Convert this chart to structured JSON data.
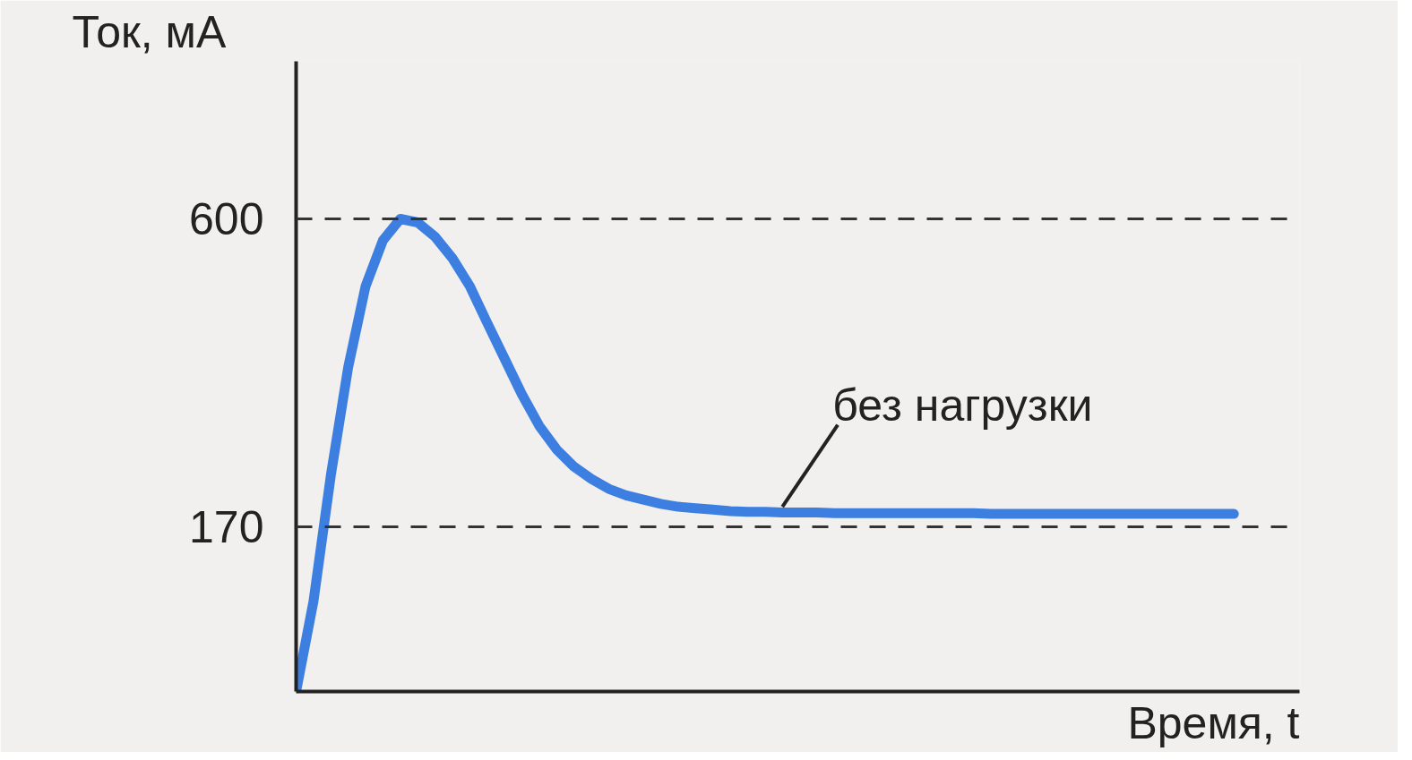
{
  "chart_data": {
    "type": "line",
    "xlabel": "Время, t",
    "ylabel": "Ток, мА",
    "categories": [
      null,
      null,
      null,
      null,
      null,
      null,
      null,
      null,
      null,
      null,
      null,
      null,
      null,
      null,
      null,
      null,
      null,
      null,
      null,
      null,
      null,
      null,
      null,
      null,
      null,
      null,
      null,
      null,
      null,
      null,
      null,
      null,
      null,
      null,
      null,
      null,
      null,
      null,
      null,
      null,
      null,
      null,
      null,
      null,
      null,
      null,
      null,
      null,
      null,
      null,
      null,
      null,
      null,
      null,
      null
    ],
    "series": [
      {
        "color": "#3d7fe0",
        "values": [
          -60,
          66,
          242,
          393,
          506,
          570,
          600,
          595,
          575,
          545,
          506,
          455,
          405,
          355,
          311,
          278,
          254,
          237,
          223,
          214,
          208,
          202,
          198,
          196,
          194,
          192,
          191,
          191,
          190,
          190,
          190,
          189,
          189,
          189,
          189,
          189,
          189,
          189,
          189,
          189,
          188,
          188,
          188,
          188,
          188,
          188,
          188,
          188,
          188,
          188,
          188,
          188,
          188,
          188,
          188
        ]
      }
    ],
    "ylim": [
      -60,
      820
    ],
    "yticks": [
      600,
      170
    ],
    "tick_labels": "y",
    "grid": false,
    "line_style": "solid",
    "marker": "none",
    "ref_lines": [
      {
        "axis": "y",
        "value": 600,
        "color": "#333333",
        "line_style": "dashed"
      },
      {
        "axis": "y",
        "value": 170,
        "color": "#333333",
        "line_style": "dashed"
      }
    ],
    "annotations": [
      "без нагрузки"
    ]
  }
}
